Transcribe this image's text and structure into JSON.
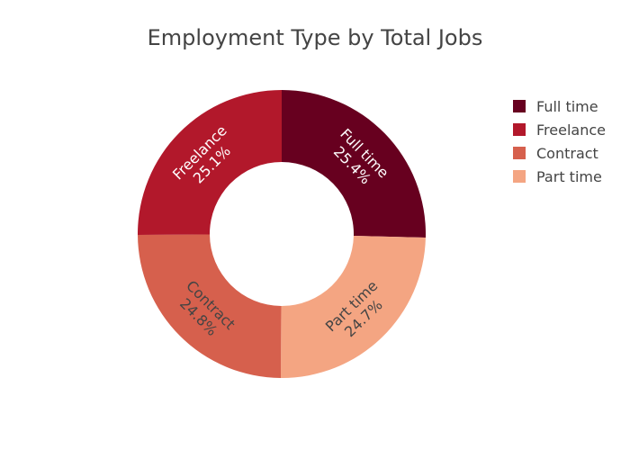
{
  "chart_data": {
    "type": "pie",
    "hole": true,
    "title": "Employment Type by Total Jobs",
    "categories": [
      "Full time",
      "Part time",
      "Contract",
      "Freelance"
    ],
    "values": [
      25.4,
      24.7,
      24.8,
      25.1
    ],
    "labels": [
      "25.4%",
      "24.7%",
      "24.8%",
      "25.1%"
    ],
    "colors": [
      "#67001f",
      "#f4a582",
      "#d6604d",
      "#b2182b"
    ],
    "label_colors": [
      "#ffffff",
      "#444444",
      "#444444",
      "#ffffff"
    ],
    "legend": {
      "position": "right",
      "entries": [
        {
          "label": "Full time",
          "color": "#67001f"
        },
        {
          "label": "Freelance",
          "color": "#b2182b"
        },
        {
          "label": "Contract",
          "color": "#d6604d"
        },
        {
          "label": "Part time",
          "color": "#f4a582"
        }
      ]
    }
  }
}
